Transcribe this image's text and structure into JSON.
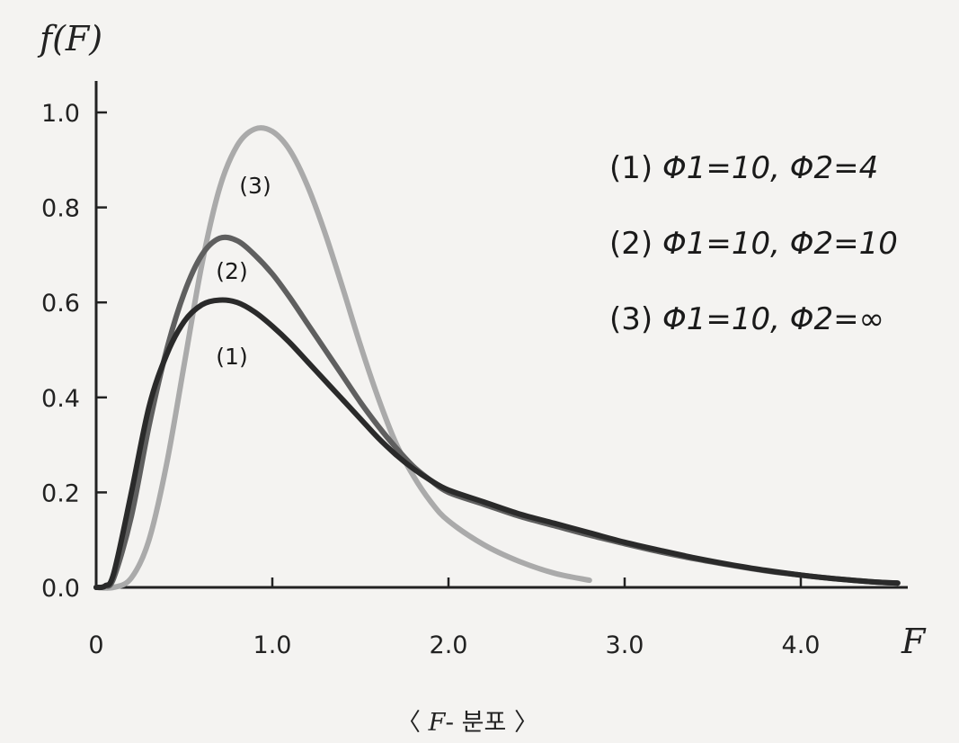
{
  "chart_data": {
    "type": "line",
    "ylabel": "f(F)",
    "xlabel": "F",
    "xlim": [
      0,
      4.55
    ],
    "ylim": [
      0,
      1.05
    ],
    "x_ticks": [
      {
        "value": 0,
        "label": "0"
      },
      {
        "value": 1.0,
        "label": "1.0"
      },
      {
        "value": 2.0,
        "label": "2.0"
      },
      {
        "value": 3.0,
        "label": "3.0"
      },
      {
        "value": 4.0,
        "label": "4.0"
      }
    ],
    "y_ticks": [
      {
        "value": 0.0,
        "label": "0.0"
      },
      {
        "value": 0.2,
        "label": "0.2"
      },
      {
        "value": 0.4,
        "label": "0.4"
      },
      {
        "value": 0.6,
        "label": "0.6"
      },
      {
        "value": 0.8,
        "label": "0.8"
      },
      {
        "value": 1.0,
        "label": "1.0"
      }
    ],
    "grid": false,
    "legend_position": "top-right",
    "series": [
      {
        "name": "(1) Φ1=10, Φ2=4",
        "color": "#2a2a2a",
        "label": "(1)",
        "points": [
          [
            0,
            0
          ],
          [
            0.05,
            0.003
          ],
          [
            0.1,
            0.03
          ],
          [
            0.2,
            0.2
          ],
          [
            0.3,
            0.38
          ],
          [
            0.4,
            0.49
          ],
          [
            0.5,
            0.56
          ],
          [
            0.6,
            0.595
          ],
          [
            0.7,
            0.605
          ],
          [
            0.8,
            0.6
          ],
          [
            0.9,
            0.58
          ],
          [
            1.0,
            0.55
          ],
          [
            1.1,
            0.515
          ],
          [
            1.2,
            0.475
          ],
          [
            1.3,
            0.435
          ],
          [
            1.4,
            0.395
          ],
          [
            1.5,
            0.355
          ],
          [
            1.6,
            0.315
          ],
          [
            1.7,
            0.28
          ],
          [
            1.8,
            0.25
          ],
          [
            1.9,
            0.225
          ],
          [
            2.0,
            0.205
          ],
          [
            2.2,
            0.18
          ],
          [
            2.4,
            0.155
          ],
          [
            2.6,
            0.135
          ],
          [
            2.8,
            0.115
          ],
          [
            3.0,
            0.095
          ],
          [
            3.2,
            0.078
          ],
          [
            3.4,
            0.062
          ],
          [
            3.6,
            0.048
          ],
          [
            3.8,
            0.036
          ],
          [
            4.0,
            0.026
          ],
          [
            4.2,
            0.018
          ],
          [
            4.4,
            0.012
          ],
          [
            4.55,
            0.009
          ]
        ]
      },
      {
        "name": "(2) Φ1=10, Φ2=10",
        "color": "#5f5f5f",
        "label": "(2)",
        "points": [
          [
            0,
            0
          ],
          [
            0.05,
            0.002
          ],
          [
            0.1,
            0.02
          ],
          [
            0.2,
            0.15
          ],
          [
            0.3,
            0.34
          ],
          [
            0.4,
            0.5
          ],
          [
            0.5,
            0.62
          ],
          [
            0.6,
            0.7
          ],
          [
            0.7,
            0.735
          ],
          [
            0.8,
            0.73
          ],
          [
            0.9,
            0.7
          ],
          [
            1.0,
            0.66
          ],
          [
            1.1,
            0.61
          ],
          [
            1.2,
            0.555
          ],
          [
            1.3,
            0.5
          ],
          [
            1.4,
            0.445
          ],
          [
            1.5,
            0.39
          ],
          [
            1.6,
            0.34
          ],
          [
            1.7,
            0.295
          ],
          [
            1.8,
            0.255
          ],
          [
            1.9,
            0.225
          ],
          [
            2.0,
            0.2
          ],
          [
            2.2,
            0.175
          ],
          [
            2.4,
            0.15
          ],
          [
            2.6,
            0.13
          ],
          [
            2.8,
            0.11
          ],
          [
            3.0,
            0.092
          ],
          [
            3.2,
            0.075
          ],
          [
            3.4,
            0.06
          ],
          [
            3.6,
            0.047
          ],
          [
            3.8,
            0.035
          ],
          [
            4.0,
            0.026
          ],
          [
            4.2,
            0.018
          ],
          [
            4.4,
            0.012
          ],
          [
            4.55,
            0.009
          ]
        ]
      },
      {
        "name": "(3) Φ1=10, Φ2=∞",
        "color": "#aaaaaa",
        "label": "(3)",
        "points": [
          [
            0,
            0
          ],
          [
            0.1,
            0.0
          ],
          [
            0.2,
            0.02
          ],
          [
            0.3,
            0.1
          ],
          [
            0.4,
            0.26
          ],
          [
            0.5,
            0.47
          ],
          [
            0.6,
            0.68
          ],
          [
            0.7,
            0.84
          ],
          [
            0.8,
            0.93
          ],
          [
            0.9,
            0.965
          ],
          [
            1.0,
            0.96
          ],
          [
            1.1,
            0.92
          ],
          [
            1.2,
            0.845
          ],
          [
            1.3,
            0.745
          ],
          [
            1.4,
            0.63
          ],
          [
            1.5,
            0.51
          ],
          [
            1.6,
            0.4
          ],
          [
            1.7,
            0.305
          ],
          [
            1.8,
            0.235
          ],
          [
            1.9,
            0.18
          ],
          [
            2.0,
            0.14
          ],
          [
            2.2,
            0.09
          ],
          [
            2.4,
            0.055
          ],
          [
            2.6,
            0.03
          ],
          [
            2.8,
            0.015
          ]
        ]
      }
    ],
    "legend": [
      {
        "num": "(1)",
        "p1": "Φ1=10,",
        "p2": "Φ2=4"
      },
      {
        "num": "(2)",
        "p1": "Φ1=10,",
        "p2": "Φ2=10"
      },
      {
        "num": "(3)",
        "p1": "Φ1=10,",
        "p2": "Φ2=∞"
      }
    ],
    "caption": {
      "left": "〈",
      "var": "F",
      "text": "- 분포",
      "right": "〉"
    }
  }
}
